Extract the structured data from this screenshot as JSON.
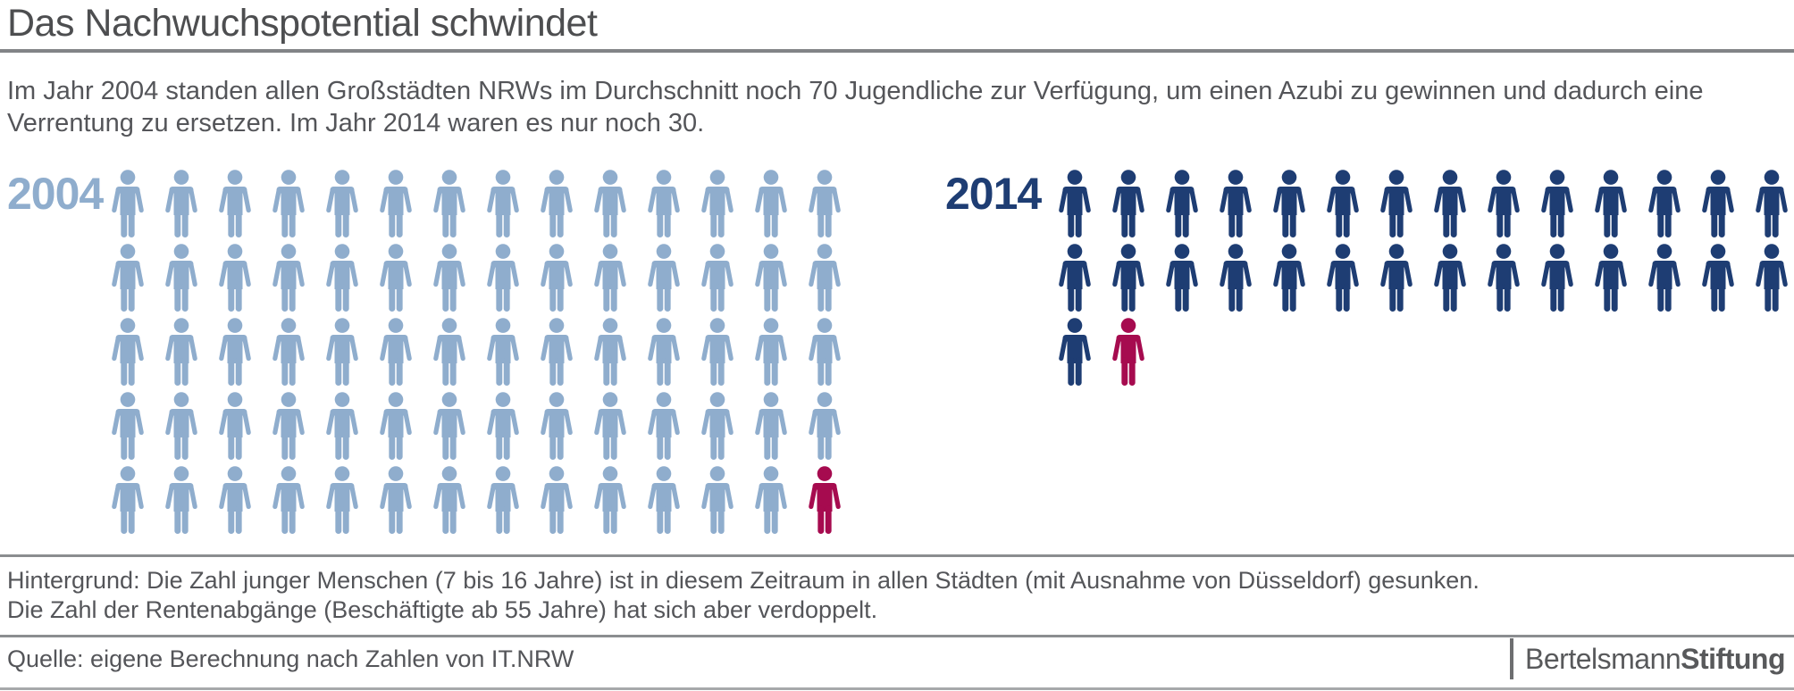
{
  "header": {
    "title": "Das Nachwuchspotential schwindet"
  },
  "intro": {
    "line1": "Im Jahr 2004 standen allen Großstädten NRWs im Durchschnitt noch 70 Jugendliche zur Verfügung, um einen Azubi zu gewinnen und dadurch eine",
    "line2": "Verrentung zu ersetzen. Im Jahr 2014 waren es nur noch 30."
  },
  "chart_data": {
    "type": "pictogram",
    "title": "Das Nachwuchspotential schwindet",
    "icon": "person-icon",
    "legend_position": "left-of-each-group",
    "series": [
      {
        "label": "2004",
        "value": 70,
        "icons_per_row": 14,
        "rows": 5,
        "icon_color": "#8fadcd",
        "highlight_last": true,
        "highlight_count": 1,
        "highlight_color": "#a60b4f"
      },
      {
        "label": "2014",
        "value": 30,
        "icons_per_row": 14,
        "rows": 3,
        "icon_color": "#1e3d73",
        "highlight_last": true,
        "highlight_count": 1,
        "highlight_color": "#a60b4f"
      }
    ]
  },
  "footnote": {
    "line1": "Hintergrund: Die Zahl junger Menschen (7 bis 16 Jahre) ist in diesem Zeitraum in allen Städten (mit Ausnahme von Düsseldorf) gesunken.",
    "line2": "Die Zahl der Rentenabgänge (Beschäftigte ab 55 Jahre) hat sich aber verdoppelt."
  },
  "source": {
    "text": "Quelle: eigene Berechnung nach Zahlen von IT.NRW"
  },
  "logo": {
    "name": "Bertelsmann",
    "suffix": "Stiftung"
  },
  "colors": {
    "blue_2004": "#8fadcd",
    "navy_2014": "#1e3d73",
    "highlight_red": "#a60b4f",
    "text_gray": "#545559",
    "rule_gray": "#828487"
  }
}
